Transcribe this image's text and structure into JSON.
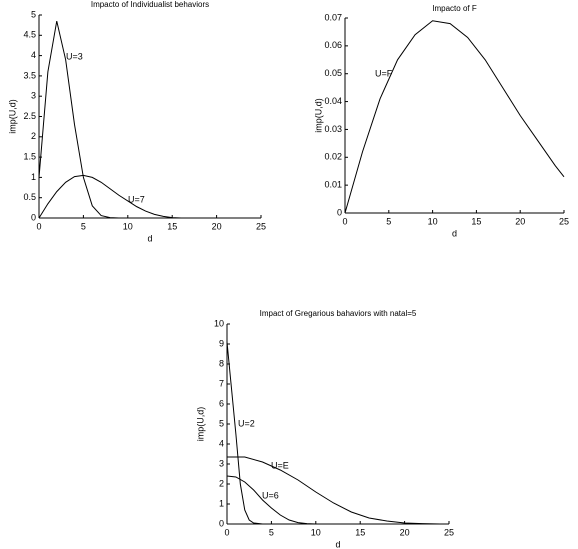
{
  "chart_data": [
    {
      "type": "line",
      "title": "Impacto of Individualist behaviors",
      "xlabel": "d",
      "ylabel": "imp(U,d)",
      "xlim": [
        0,
        25
      ],
      "ylim": [
        0,
        5
      ],
      "xticks": [
        0,
        5,
        10,
        15,
        20,
        25
      ],
      "yticks": [
        0,
        0.5,
        1,
        1.5,
        2,
        2.5,
        3,
        3.5,
        4,
        4.5,
        5
      ],
      "series": [
        {
          "name": "U=3",
          "color": "#000000",
          "x": [
            0,
            1,
            2,
            3,
            4,
            5,
            6,
            7,
            8,
            9
          ],
          "values": [
            1.0,
            3.6,
            4.85,
            3.9,
            2.3,
            1.0,
            0.3,
            0.06,
            0.01,
            0
          ]
        },
        {
          "name": "U=7",
          "color": "#000000",
          "x": [
            0,
            1,
            2,
            3,
            4,
            5,
            6,
            7,
            8,
            9,
            10,
            11,
            12,
            13,
            14,
            15,
            16
          ],
          "values": [
            0,
            0.35,
            0.65,
            0.88,
            1.02,
            1.05,
            1.0,
            0.88,
            0.72,
            0.56,
            0.42,
            0.28,
            0.17,
            0.09,
            0.04,
            0.01,
            0
          ]
        }
      ]
    },
    {
      "type": "line",
      "title": "Impacto of F",
      "xlabel": "d",
      "ylabel": "imp(U,d)",
      "xlim": [
        0,
        25
      ],
      "ylim": [
        0,
        0.07
      ],
      "xticks": [
        0,
        5,
        10,
        15,
        20,
        25
      ],
      "yticks": [
        0,
        0.01,
        0.02,
        0.03,
        0.04,
        0.05,
        0.06,
        0.07
      ],
      "series": [
        {
          "name": "U=F",
          "color": "#000000",
          "x": [
            0,
            2,
            4,
            6,
            8,
            10,
            12,
            14,
            16,
            18,
            20,
            22,
            24,
            25
          ],
          "values": [
            0,
            0.022,
            0.041,
            0.055,
            0.064,
            0.069,
            0.068,
            0.063,
            0.055,
            0.045,
            0.035,
            0.026,
            0.017,
            0.013
          ]
        }
      ]
    },
    {
      "type": "line",
      "title": "Impact of Gregarious bahaviors with natal=5",
      "xlabel": "d",
      "ylabel": "imp(U,d)",
      "xlim": [
        0,
        25
      ],
      "ylim": [
        0,
        10
      ],
      "xticks": [
        0,
        5,
        10,
        15,
        20,
        25
      ],
      "yticks": [
        0,
        1,
        2,
        3,
        4,
        5,
        6,
        7,
        8,
        9,
        10
      ],
      "series": [
        {
          "name": "U=2",
          "color": "#000000",
          "x": [
            0,
            1,
            1.5,
            2,
            2.5,
            3,
            4
          ],
          "values": [
            9.1,
            4.5,
            2.0,
            0.7,
            0.2,
            0.05,
            0
          ]
        },
        {
          "name": "U=E",
          "color": "#000000",
          "x": [
            0,
            2,
            4,
            6,
            8,
            10,
            12,
            14,
            16,
            18,
            20,
            22,
            24
          ],
          "values": [
            3.35,
            3.35,
            3.1,
            2.7,
            2.2,
            1.6,
            1.05,
            0.6,
            0.3,
            0.15,
            0.05,
            0.02,
            0
          ]
        },
        {
          "name": "U=6",
          "color": "#000000",
          "x": [
            0,
            1,
            2,
            3,
            4,
            5,
            6,
            7,
            8,
            9,
            10
          ],
          "values": [
            2.4,
            2.35,
            2.1,
            1.7,
            1.2,
            0.8,
            0.45,
            0.2,
            0.07,
            0.02,
            0
          ]
        }
      ]
    }
  ]
}
